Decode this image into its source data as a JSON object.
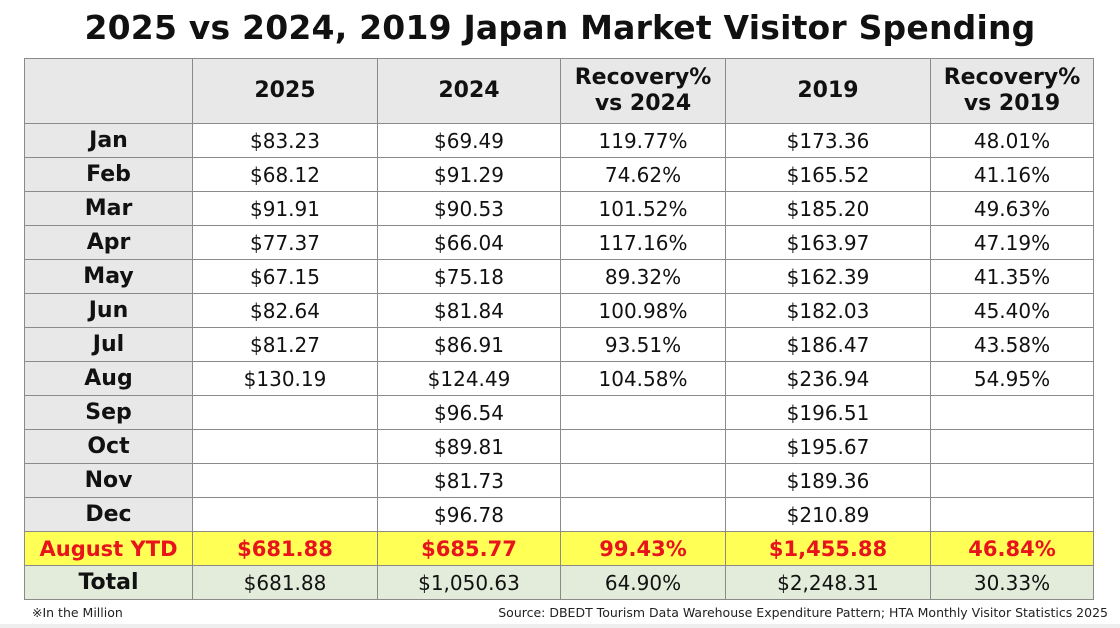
{
  "title": "2025 vs 2024, 2019 Japan Market Visitor Spending",
  "chart_data": {
    "type": "table",
    "title": "2025 vs 2024, 2019 Japan Market Visitor Spending",
    "columns": [
      "",
      "2025",
      "2024",
      "Recovery%\nvs 2024",
      "2019",
      "Recovery%\nvs 2019"
    ],
    "rows": [
      {
        "label": "Jan",
        "values": [
          "$83.23",
          "$69.49",
          "119.77%",
          "$173.36",
          "48.01%"
        ]
      },
      {
        "label": "Feb",
        "values": [
          "$68.12",
          "$91.29",
          "74.62%",
          "$165.52",
          "41.16%"
        ]
      },
      {
        "label": "Mar",
        "values": [
          "$91.91",
          "$90.53",
          "101.52%",
          "$185.20",
          "49.63%"
        ]
      },
      {
        "label": "Apr",
        "values": [
          "$77.37",
          "$66.04",
          "117.16%",
          "$163.97",
          "47.19%"
        ]
      },
      {
        "label": "May",
        "values": [
          "$67.15",
          "$75.18",
          "89.32%",
          "$162.39",
          "41.35%"
        ]
      },
      {
        "label": "Jun",
        "values": [
          "$82.64",
          "$81.84",
          "100.98%",
          "$182.03",
          "45.40%"
        ]
      },
      {
        "label": "Jul",
        "values": [
          "$81.27",
          "$86.91",
          "93.51%",
          "$186.47",
          "43.58%"
        ]
      },
      {
        "label": "Aug",
        "values": [
          "$130.19",
          "$124.49",
          "104.58%",
          "$236.94",
          "54.95%"
        ]
      },
      {
        "label": "Sep",
        "values": [
          "",
          "$96.54",
          "",
          "$196.51",
          ""
        ]
      },
      {
        "label": "Oct",
        "values": [
          "",
          "$89.81",
          "",
          "$195.67",
          ""
        ]
      },
      {
        "label": "Nov",
        "values": [
          "",
          "$81.73",
          "",
          "$189.36",
          ""
        ]
      },
      {
        "label": "Dec",
        "values": [
          "",
          "$96.78",
          "",
          "$210.89",
          ""
        ]
      }
    ],
    "ytd": {
      "label": "August YTD",
      "values": [
        "$681.88",
        "$685.77",
        "99.43%",
        "$1,455.88",
        "46.84%"
      ]
    },
    "total": {
      "label": "Total",
      "values": [
        "$681.88",
        "$1,050.63",
        "64.90%",
        "$2,248.31",
        "30.33%"
      ]
    }
  },
  "colors": {
    "header_bg": "#e8e8e8",
    "ytd_bg": "#ffff55",
    "ytd_text": "#e8141c",
    "total_bg": "#e3ecda"
  },
  "footer": {
    "note": "※In the Million",
    "source": "Source: DBEDT Tourism Data Warehouse Expenditure Pattern; HTA Monthly Visitor Statistics 2025"
  }
}
